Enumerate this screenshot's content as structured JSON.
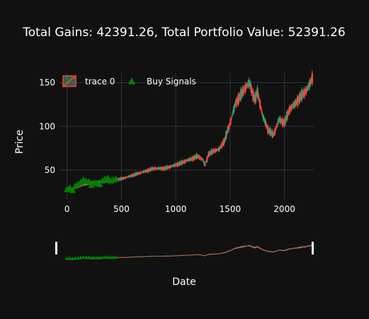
{
  "chart_data": {
    "type": "candlestick",
    "title": "Total Gains: 42391.26, Total Portfolio Value: 52391.26",
    "xlabel": "Date",
    "ylabel": "Price",
    "xlim": [
      -70,
      2270
    ],
    "ylim": [
      16,
      161
    ],
    "x_ticks": [
      0,
      500,
      1000,
      1500,
      2000
    ],
    "y_ticks": [
      50,
      100,
      150
    ],
    "grid": true,
    "legend": {
      "placement": "top-left",
      "orientation": "horizontal"
    },
    "rangeslider": true,
    "colors": {
      "increasing": "#3d9970",
      "decreasing": "#ff4136",
      "buy_signal": "#008000",
      "background": "#111111",
      "grid": "#283442"
    },
    "series": [
      {
        "name": "trace 0",
        "kind": "candlestick",
        "x": [
          0,
          100,
          200,
          300,
          400,
          500,
          600,
          700,
          800,
          900,
          1000,
          1050,
          1100,
          1150,
          1200,
          1250,
          1270,
          1300,
          1350,
          1400,
          1450,
          1500,
          1550,
          1600,
          1650,
          1680,
          1700,
          1730,
          1750,
          1800,
          1850,
          1900,
          1950,
          2000,
          2050,
          2100,
          2150,
          2200,
          2220,
          2240,
          2260
        ],
        "close": [
          27,
          31,
          35,
          37,
          38,
          40,
          44,
          48,
          52,
          52,
          56,
          58,
          61,
          63,
          66,
          62,
          55,
          68,
          72,
          74,
          84,
          104,
          126,
          136,
          146,
          150,
          140,
          130,
          140,
          112,
          96,
          90,
          108,
          104,
          120,
          126,
          134,
          141,
          145,
          150,
          157
        ]
      },
      {
        "name": "Buy Signals",
        "kind": "markers",
        "x": [
          0,
          25,
          50,
          75,
          100,
          125,
          150,
          175,
          200,
          225,
          250,
          275,
          300,
          325,
          350,
          375,
          400,
          425,
          450
        ],
        "y": [
          28,
          30,
          27,
          32,
          34,
          36,
          39,
          38,
          37,
          33,
          36,
          35,
          34,
          38,
          40,
          41,
          38,
          39,
          40
        ]
      }
    ]
  }
}
